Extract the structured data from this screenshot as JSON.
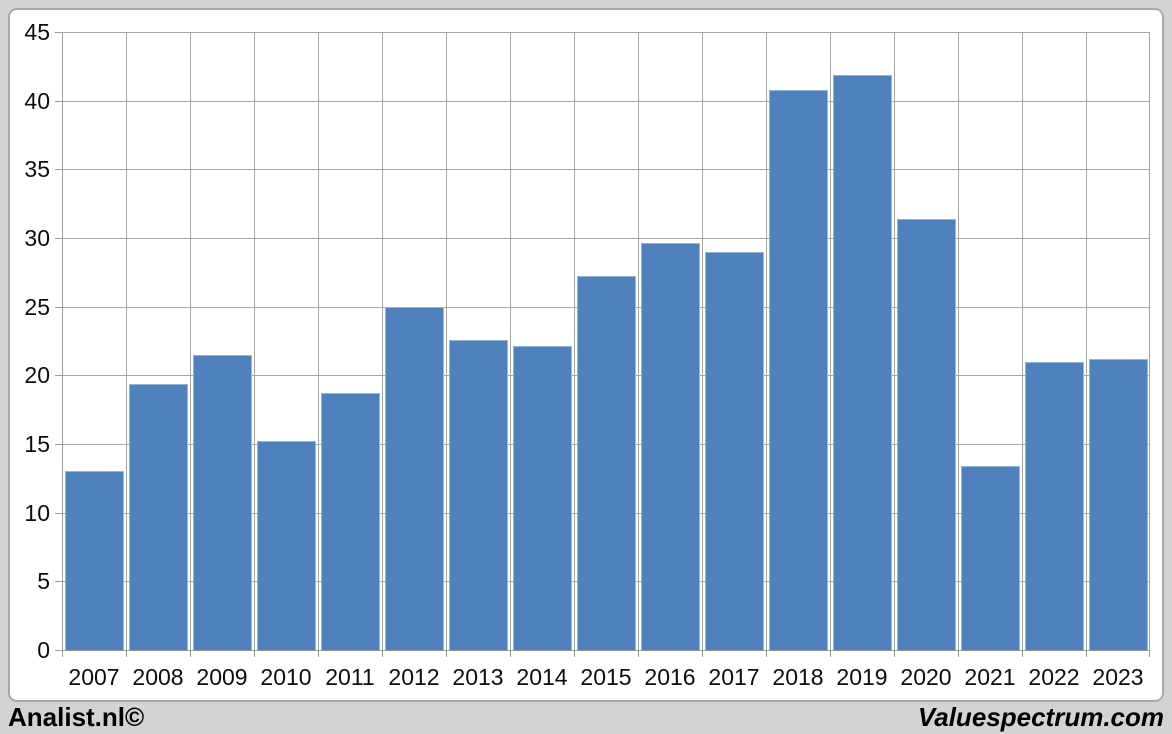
{
  "chart_data": {
    "type": "bar",
    "title": "",
    "xlabel": "",
    "ylabel": "",
    "categories": [
      "2007",
      "2008",
      "2009",
      "2010",
      "2011",
      "2012",
      "2013",
      "2014",
      "2015",
      "2016",
      "2017",
      "2018",
      "2019",
      "2020",
      "2021",
      "2022",
      "2023"
    ],
    "values": [
      13.0,
      19.4,
      21.5,
      15.2,
      18.7,
      25.0,
      22.6,
      22.1,
      27.2,
      29.6,
      29.0,
      40.8,
      41.9,
      31.4,
      13.4,
      21.0,
      21.2
    ],
    "ylim": [
      0,
      45
    ],
    "yticks": [
      0,
      5,
      10,
      15,
      20,
      25,
      30,
      35,
      40,
      45
    ],
    "grid": true,
    "legend": "none",
    "colors": {
      "bar_fill": "#4f81bd",
      "bar_border": "#95b3d7",
      "gridline": "#a6a6a6",
      "axis": "#9a9a9a",
      "label_text": "#0d0d0d"
    }
  },
  "footer": {
    "left_brand": "Analist.nl©",
    "right_brand": "Valuespectrum.com"
  }
}
